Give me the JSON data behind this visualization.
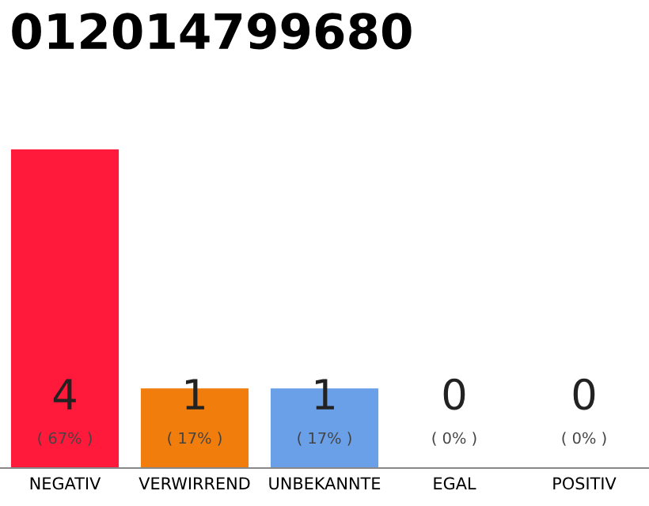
{
  "chart_data": {
    "type": "bar",
    "title": "012014799680",
    "categories": [
      "NEGATIV",
      "VERWIRREND",
      "UNBEKANNTE",
      "EGAL",
      "POSITIV"
    ],
    "values": [
      4,
      1,
      1,
      0,
      0
    ],
    "colors": [
      "#ff1a3c",
      "#f07d0c",
      "#6aa0e8",
      "#e0e0e0",
      "#e0e0e0"
    ],
    "data_labels": true,
    "annotations": [
      "( 67% )",
      "( 17% )",
      "( 17% )",
      "( 0% )",
      "( 0% )"
    ],
    "ylim": [
      0,
      4
    ],
    "grid": false,
    "legend": false
  }
}
